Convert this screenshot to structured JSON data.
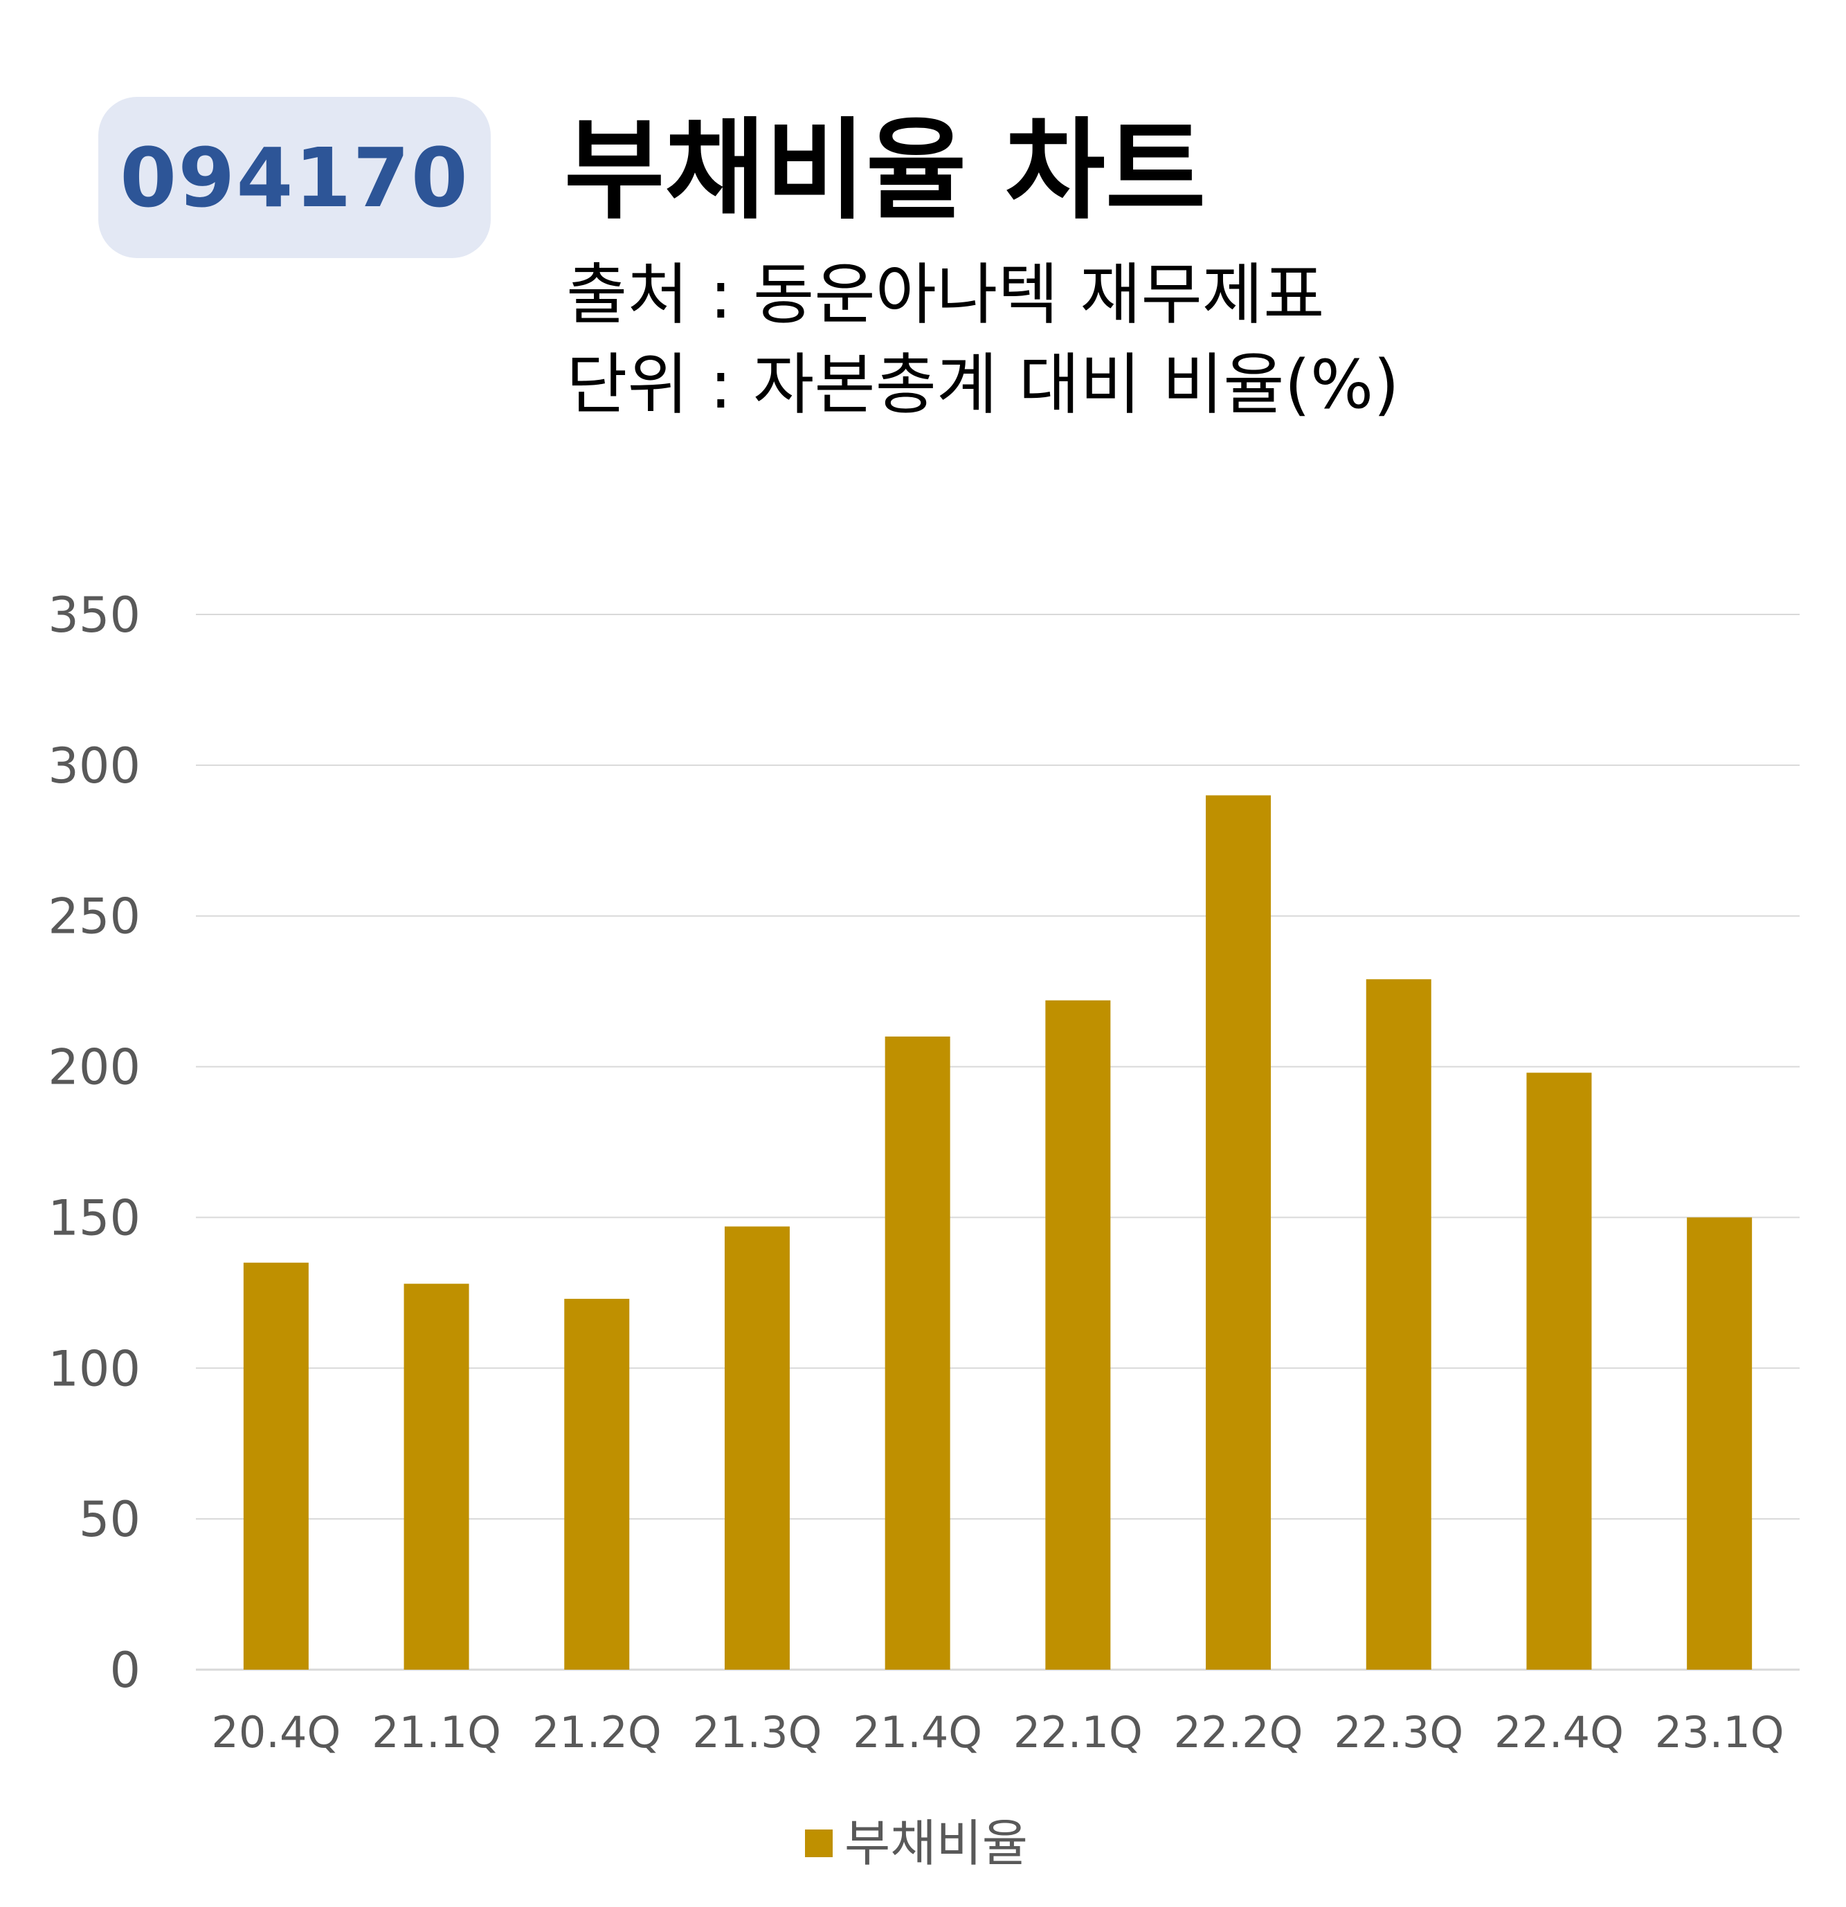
{
  "header": {
    "stock_code": "094170",
    "title": "부채비율 차트",
    "source_line": "출처 : 동운아나텍 재무제표",
    "unit_line": "단위 : 자본총계 대비 비율(%)"
  },
  "colors": {
    "bar": "#bf9000",
    "badge_bg": "#e3e8f4",
    "badge_text": "#2d5597",
    "grid": "#d9d9d9",
    "axis_text": "#595959"
  },
  "chart_data": {
    "type": "bar",
    "categories": [
      "20.4Q",
      "21.1Q",
      "21.2Q",
      "21.3Q",
      "21.4Q",
      "22.1Q",
      "22.2Q",
      "22.3Q",
      "22.4Q",
      "23.1Q"
    ],
    "series": [
      {
        "name": "부채비율",
        "color": "#bf9000",
        "values": [
          135,
          128,
          123,
          147,
          210,
          222,
          290,
          229,
          198,
          150
        ]
      }
    ],
    "ylim": [
      0,
      350
    ],
    "yticks": [
      "0",
      "50",
      "100",
      "150",
      "200",
      "250",
      "300",
      "350"
    ],
    "grid": true,
    "legend_position": "bottom"
  }
}
